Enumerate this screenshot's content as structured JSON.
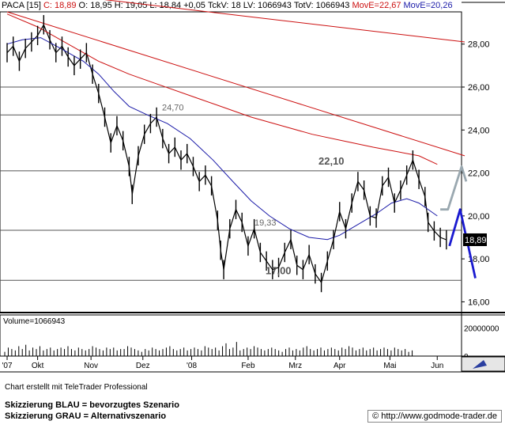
{
  "header": {
    "symbol": "PACA [15]",
    "close": "C: 18,89",
    "open": "O: 18,95",
    "high": "H: 19,05",
    "low": "L: 18,84",
    "change": "+0,05",
    "tick_volume": "TckV: 18",
    "last_volume": "LV: 1066943",
    "total_volume": "TotV: 1066943",
    "move_red": "MovE=22,67",
    "move_blue": "MovE=20,26"
  },
  "colors": {
    "price": "#000000",
    "ma_fast": "#1a1aa8",
    "ma_slow": "#cc1010",
    "scenario_blue": "#1a1ad0",
    "scenario_grey": "#9aa8b0",
    "level_line": "#555555"
  },
  "chart_data": {
    "type": "line",
    "ylim": [
      15.5,
      29.5
    ],
    "y_ticks": [
      "16,00",
      "18,00",
      "20,00",
      "22,00",
      "24,00",
      "26,00",
      "28,00"
    ],
    "y_tick_values": [
      16,
      18,
      20,
      22,
      24,
      26,
      28
    ],
    "x_ticks": [
      "'07",
      "Okt",
      "Nov",
      "Dez",
      "'08",
      "Feb",
      "Mrz",
      "Apr",
      "Mai",
      "Jun"
    ],
    "x_tick_pos": [
      0,
      20,
      55,
      89,
      121,
      158,
      189,
      218,
      251,
      282
    ],
    "last_price_label": "18,89",
    "level_annotations": [
      {
        "label": "24,70",
        "value": 24.7
      },
      {
        "label": "22,10",
        "value": 22.1
      },
      {
        "label": "19,33",
        "value": 19.33
      },
      {
        "label": "17,00",
        "value": 17.0
      }
    ],
    "series": [
      {
        "name": "Price",
        "points": [
          [
            0,
            27.6
          ],
          [
            4,
            27.9
          ],
          [
            8,
            27.2
          ],
          [
            12,
            27.8
          ],
          [
            16,
            28.1
          ],
          [
            20,
            28.4
          ],
          [
            24,
            28.9
          ],
          [
            28,
            28.2
          ],
          [
            32,
            27.6
          ],
          [
            36,
            27.9
          ],
          [
            40,
            27.4
          ],
          [
            44,
            27.0
          ],
          [
            48,
            27.3
          ],
          [
            52,
            27.6
          ],
          [
            56,
            26.6
          ],
          [
            60,
            25.7
          ],
          [
            64,
            24.6
          ],
          [
            68,
            23.4
          ],
          [
            72,
            24.2
          ],
          [
            76,
            23.5
          ],
          [
            80,
            22.3
          ],
          [
            82,
            21.0
          ],
          [
            86,
            22.8
          ],
          [
            90,
            23.8
          ],
          [
            94,
            24.3
          ],
          [
            98,
            24.6
          ],
          [
            102,
            23.6
          ],
          [
            106,
            22.9
          ],
          [
            110,
            23.2
          ],
          [
            114,
            22.6
          ],
          [
            118,
            22.9
          ],
          [
            122,
            22.3
          ],
          [
            126,
            21.6
          ],
          [
            130,
            21.9
          ],
          [
            134,
            21.4
          ],
          [
            138,
            19.8
          ],
          [
            140,
            18.4
          ],
          [
            142,
            17.5
          ],
          [
            146,
            19.4
          ],
          [
            150,
            20.3
          ],
          [
            154,
            19.7
          ],
          [
            158,
            18.6
          ],
          [
            162,
            19.4
          ],
          [
            166,
            18.3
          ],
          [
            170,
            17.9
          ],
          [
            174,
            17.5
          ],
          [
            178,
            17.6
          ],
          [
            182,
            18.3
          ],
          [
            186,
            18.9
          ],
          [
            190,
            17.7
          ],
          [
            194,
            17.5
          ],
          [
            198,
            18.2
          ],
          [
            202,
            17.3
          ],
          [
            206,
            16.9
          ],
          [
            210,
            17.9
          ],
          [
            214,
            18.9
          ],
          [
            218,
            20.2
          ],
          [
            222,
            19.4
          ],
          [
            226,
            20.6
          ],
          [
            230,
            21.6
          ],
          [
            234,
            21.2
          ],
          [
            238,
            20.0
          ],
          [
            242,
            19.9
          ],
          [
            246,
            21.4
          ],
          [
            250,
            21.8
          ],
          [
            254,
            20.6
          ],
          [
            258,
            21.2
          ],
          [
            262,
            21.9
          ],
          [
            266,
            22.6
          ],
          [
            270,
            21.7
          ],
          [
            274,
            20.9
          ],
          [
            276,
            19.7
          ],
          [
            280,
            19.3
          ],
          [
            284,
            19.0
          ],
          [
            288,
            18.89
          ]
        ]
      },
      {
        "name": "MovE=20,26",
        "points": [
          [
            0,
            28.0
          ],
          [
            10,
            28.2
          ],
          [
            22,
            28.3
          ],
          [
            35,
            27.8
          ],
          [
            50,
            27.2
          ],
          [
            60,
            26.6
          ],
          [
            70,
            25.8
          ],
          [
            80,
            25.1
          ],
          [
            92,
            24.7
          ],
          [
            105,
            24.3
          ],
          [
            120,
            23.6
          ],
          [
            135,
            22.6
          ],
          [
            148,
            21.6
          ],
          [
            160,
            20.7
          ],
          [
            172,
            20.0
          ],
          [
            185,
            19.4
          ],
          [
            198,
            19.0
          ],
          [
            210,
            18.9
          ],
          [
            218,
            19.1
          ],
          [
            230,
            19.6
          ],
          [
            242,
            20.1
          ],
          [
            252,
            20.6
          ],
          [
            262,
            20.8
          ],
          [
            270,
            20.6
          ],
          [
            278,
            20.2
          ],
          [
            282,
            20.0
          ]
        ]
      },
      {
        "name": "MovE=22,67",
        "points": [
          [
            0,
            29.4
          ],
          [
            20,
            28.8
          ],
          [
            40,
            28.0
          ],
          [
            60,
            27.2
          ],
          [
            80,
            26.6
          ],
          [
            100,
            26.1
          ],
          [
            120,
            25.6
          ],
          [
            140,
            25.1
          ],
          [
            160,
            24.6
          ],
          [
            180,
            24.2
          ],
          [
            200,
            23.8
          ],
          [
            220,
            23.5
          ],
          [
            240,
            23.2
          ],
          [
            255,
            23.0
          ],
          [
            270,
            22.8
          ],
          [
            282,
            22.4
          ]
        ]
      },
      {
        "name": "Trend line (long)",
        "points": [
          [
            0,
            30.6
          ],
          [
            300,
            28.1
          ]
        ]
      },
      {
        "name": "Trend line (short)",
        "points": [
          [
            0,
            29.5
          ],
          [
            300,
            22.8
          ]
        ]
      }
    ],
    "scenario_blue": [
      [
        290,
        18.6
      ],
      [
        297,
        20.3
      ],
      [
        307,
        17.1
      ]
    ],
    "scenario_grey": [
      [
        284,
        20.3
      ],
      [
        289,
        20.3
      ],
      [
        298,
        22.3
      ],
      [
        301,
        21.6
      ]
    ],
    "volume": {
      "label": "Volume=1066943",
      "y_ticks": [
        "20000000",
        "0"
      ],
      "ylim": [
        0,
        28000000
      ],
      "bars": [
        3,
        6,
        5,
        4,
        7,
        5,
        8,
        4,
        6,
        5,
        7,
        4,
        5,
        6,
        4,
        5,
        6,
        5,
        7,
        5,
        4,
        6,
        5,
        4,
        5,
        7,
        6,
        5,
        4,
        6,
        5,
        6,
        4,
        5,
        5,
        7,
        6,
        5,
        4,
        3,
        5,
        4,
        6,
        5,
        4,
        5,
        6,
        7,
        5,
        4,
        5,
        6,
        4,
        5,
        6,
        5,
        4,
        7,
        6,
        5,
        6,
        4,
        7,
        9,
        5,
        6,
        10,
        4,
        5,
        6,
        5,
        7,
        6,
        5,
        4,
        5,
        6,
        5,
        4,
        3,
        5,
        6,
        4,
        5,
        4,
        6,
        7,
        5,
        4,
        5,
        6,
        4,
        5,
        6,
        5,
        4,
        6,
        5,
        7,
        6,
        4,
        5,
        6,
        4,
        5,
        6,
        4,
        5,
        6,
        5,
        4,
        6,
        5,
        4,
        5,
        3,
        4
      ]
    }
  },
  "footer": {
    "credit": "Chart erstellt mit TeleTrader Professional",
    "blue_note": "Skizzierung BLAU = bevorzugtes Szenario",
    "grey_note": "Skizzierung GRAU = Alternativszenario",
    "website": "© http://www.godmode-trader.de"
  }
}
